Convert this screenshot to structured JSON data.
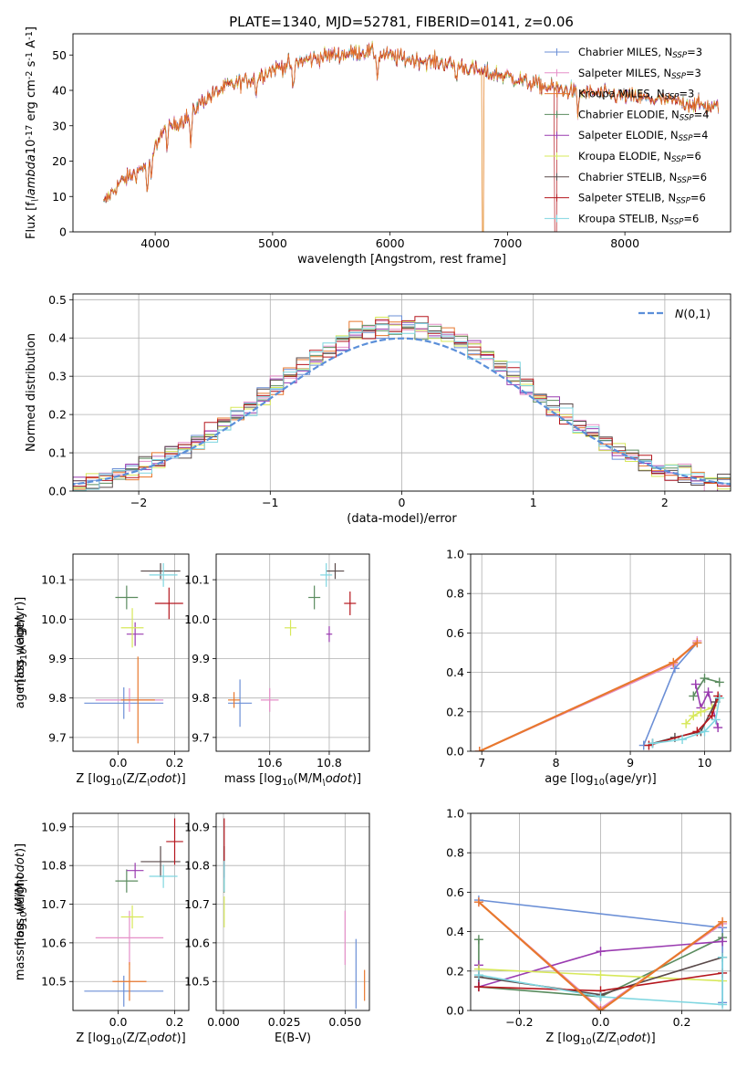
{
  "figure": {
    "title": "PLATE=1340, MJD=52781, FIBERID=0141, z=0.06",
    "colors": [
      "#6b8fd6",
      "#e58fc8",
      "#e8782e",
      "#5b8c5f",
      "#9a3bb0",
      "#d7e85a",
      "#5a4a4a",
      "#b5161d",
      "#7fd6e0"
    ],
    "series_names": [
      "Chabrier MILES, N$_{SSP}$=3",
      "Salpeter MILES, N$_{SSP}$=3",
      "Kroupa MILES, N$_{SSP}$=3",
      "Chabrier ELODIE, N$_{SSP}$=4",
      "Salpeter ELODIE, N$_{SSP}$=4",
      "Kroupa ELODIE, N$_{SSP}$=6",
      "Chabrier STELIB, N$_{SSP}$=6",
      "Salpeter STELIB, N$_{SSP}$=6",
      "Kroupa STELIB, N$_{SSP}$=6"
    ]
  },
  "chart_data": [
    {
      "id": "spectrum",
      "type": "line",
      "xlabel": "wavelength [Angstrom, rest frame]",
      "ylabel": "Flux [f$_\\lambda$10$^{-17}$ erg cm$^{-2}$ s$^{-1}$ A$^{-1}$]",
      "xlim": [
        3300,
        8900
      ],
      "ylim": [
        0,
        56
      ],
      "xticks": [
        4000,
        5000,
        6000,
        7000,
        8000
      ],
      "yticks": [
        0,
        10,
        20,
        30,
        40,
        50
      ],
      "grid": false,
      "legend": "top-right",
      "continuum": [
        [
          3560,
          8
        ],
        [
          3700,
          14
        ],
        [
          3850,
          17
        ],
        [
          3950,
          20
        ],
        [
          4050,
          28
        ],
        [
          4200,
          31
        ],
        [
          4300,
          33
        ],
        [
          4400,
          37
        ],
        [
          4600,
          41
        ],
        [
          4800,
          43
        ],
        [
          5000,
          46
        ],
        [
          5200,
          48
        ],
        [
          5500,
          50
        ],
        [
          5800,
          51
        ],
        [
          6100,
          49
        ],
        [
          6400,
          48
        ],
        [
          6600,
          47
        ],
        [
          6800,
          45
        ],
        [
          7000,
          44
        ],
        [
          7200,
          42
        ],
        [
          7500,
          40
        ],
        [
          7800,
          39
        ],
        [
          8100,
          38
        ],
        [
          8400,
          37
        ],
        [
          8600,
          36
        ],
        [
          8800,
          35
        ]
      ],
      "absorption_features": [
        [
          3933,
          8
        ],
        [
          3968,
          6
        ],
        [
          4102,
          4
        ],
        [
          4304,
          8
        ],
        [
          4861,
          4
        ],
        [
          5175,
          8
        ],
        [
          5893,
          6
        ],
        [
          6563,
          4
        ],
        [
          7600,
          6
        ]
      ],
      "drops": [
        {
          "series": 2,
          "x": 6790
        },
        {
          "series": 5,
          "x": 6790
        },
        {
          "series": 7,
          "x": 7410
        }
      ]
    },
    {
      "id": "residuals",
      "type": "bar",
      "xlabel": "(data-model)/error",
      "ylabel": "Normed distribution",
      "xlim": [
        -2.5,
        2.5
      ],
      "ylim": [
        0,
        0.515
      ],
      "xticks": [
        -2,
        -1,
        0,
        1,
        2
      ],
      "yticks": [
        0.0,
        0.1,
        0.2,
        0.3,
        0.4,
        0.5
      ],
      "bin_width": 0.1,
      "grid": true,
      "legend": "top-right",
      "gaussian_label": "$\\mathcal{N}(0,1)$"
    },
    {
      "id": "age_vs_Z",
      "type": "scatter",
      "xlabel": "Z [log$_{10}$(Z/Z$_\\odot$)]",
      "ylabel": "age  [log$_{10}$(age/yr)]",
      "xlim": [
        -0.16,
        0.25
      ],
      "ylim": [
        9.665,
        10.165
      ],
      "xticks": [
        0.0,
        0.2
      ],
      "yticks": [
        9.7,
        9.8,
        9.9,
        10.0,
        10.1
      ],
      "grid": true,
      "points": [
        {
          "series": 0,
          "x": 0.02,
          "y": 9.787,
          "xerr": 0.14,
          "yerr": 0.04
        },
        {
          "series": 1,
          "x": 0.04,
          "y": 9.795,
          "xerr": 0.12,
          "yerr": 0.03
        },
        {
          "series": 2,
          "x": 0.07,
          "y": 9.795,
          "xerr": 0.06,
          "yerr": 0.11
        },
        {
          "series": 3,
          "x": 0.03,
          "y": 10.055,
          "xerr": 0.04,
          "yerr": 0.03
        },
        {
          "series": 4,
          "x": 0.06,
          "y": 9.962,
          "xerr": 0.03,
          "yerr": 0.03
        },
        {
          "series": 5,
          "x": 0.05,
          "y": 9.978,
          "xerr": 0.04,
          "yerr": 0.05
        },
        {
          "series": 6,
          "x": 0.15,
          "y": 10.122,
          "xerr": 0.07,
          "yerr": 0.02
        },
        {
          "series": 7,
          "x": 0.18,
          "y": 10.04,
          "xerr": 0.05,
          "yerr": 0.04
        },
        {
          "series": 8,
          "x": 0.16,
          "y": 10.112,
          "xerr": 0.05,
          "yerr": 0.03
        }
      ]
    },
    {
      "id": "age_vs_mass",
      "type": "scatter",
      "xlabel": "mass [log$_{10}$(M/M$_\\odot$)]",
      "ylabel": "",
      "xlim": [
        10.42,
        10.935
      ],
      "ylim": [
        9.665,
        10.165
      ],
      "xticks": [
        10.6,
        10.8
      ],
      "yticks": [
        9.7,
        9.8,
        9.9,
        10.0,
        10.1
      ],
      "grid": true,
      "points": [
        {
          "series": 0,
          "x": 10.5,
          "y": 9.787,
          "xerr": 0.04,
          "yerr": 0.06
        },
        {
          "series": 1,
          "x": 10.6,
          "y": 9.795,
          "xerr": 0.03,
          "yerr": 0.03
        },
        {
          "series": 2,
          "x": 10.48,
          "y": 9.795,
          "xerr": 0.02,
          "yerr": 0.02
        },
        {
          "series": 3,
          "x": 10.75,
          "y": 10.055,
          "xerr": 0.02,
          "yerr": 0.03
        },
        {
          "series": 4,
          "x": 10.8,
          "y": 9.962,
          "xerr": 0.01,
          "yerr": 0.02
        },
        {
          "series": 5,
          "x": 10.67,
          "y": 9.978,
          "xerr": 0.02,
          "yerr": 0.02
        },
        {
          "series": 6,
          "x": 10.82,
          "y": 10.122,
          "xerr": 0.03,
          "yerr": 0.02
        },
        {
          "series": 7,
          "x": 10.87,
          "y": 10.04,
          "xerr": 0.02,
          "yerr": 0.03
        },
        {
          "series": 8,
          "x": 10.79,
          "y": 10.112,
          "xerr": 0.02,
          "yerr": 0.03
        }
      ]
    },
    {
      "id": "weight_vs_age",
      "type": "line",
      "xlabel": "age  [log$_{10}$(age/yr)]",
      "ylabel": "mass weight",
      "xlim": [
        6.85,
        10.35
      ],
      "ylim": [
        0,
        1
      ],
      "xticks": [
        7,
        8,
        9,
        10
      ],
      "yticks": [
        0.0,
        0.2,
        0.4,
        0.6,
        0.8,
        1.0
      ],
      "grid": true,
      "series": [
        {
          "series": 0,
          "x": [
            9.18,
            9.6,
            9.9
          ],
          "y": [
            0.03,
            0.42,
            0.55
          ]
        },
        {
          "series": 1,
          "x": [
            6.97,
            9.58,
            9.9
          ],
          "y": [
            0.0,
            0.44,
            0.56
          ]
        },
        {
          "series": 2,
          "x": [
            6.97,
            9.58,
            9.9
          ],
          "y": [
            0.0,
            0.45,
            0.55
          ]
        },
        {
          "series": 3,
          "x": [
            9.85,
            10.0,
            10.2
          ],
          "y": [
            0.28,
            0.37,
            0.35
          ]
        },
        {
          "series": 4,
          "x": [
            9.88,
            9.95,
            10.05,
            10.18
          ],
          "y": [
            0.34,
            0.22,
            0.3,
            0.12
          ]
        },
        {
          "series": 5,
          "x": [
            9.75,
            9.85,
            9.95,
            10.1,
            10.2
          ],
          "y": [
            0.14,
            0.18,
            0.2,
            0.22,
            0.27
          ]
        },
        {
          "series": 6,
          "x": [
            9.3,
            9.6,
            9.95,
            10.15
          ],
          "y": [
            0.04,
            0.07,
            0.1,
            0.25
          ]
        },
        {
          "series": 7,
          "x": [
            9.25,
            9.9,
            10.1,
            10.18
          ],
          "y": [
            0.03,
            0.1,
            0.18,
            0.28
          ]
        },
        {
          "series": 8,
          "x": [
            9.3,
            9.7,
            10.0,
            10.15,
            10.2
          ],
          "y": [
            0.04,
            0.06,
            0.1,
            0.16,
            0.27
          ]
        }
      ]
    },
    {
      "id": "mass_vs_Z",
      "type": "scatter",
      "xlabel": "Z [log$_{10}$(Z/Z$_\\odot$)]",
      "ylabel": "mass [log$_{10}$(M/M$_\\odot$)]",
      "xlim": [
        -0.16,
        0.25
      ],
      "ylim": [
        10.425,
        10.935
      ],
      "xticks": [
        0.0,
        0.2
      ],
      "yticks": [
        10.5,
        10.6,
        10.7,
        10.8,
        10.9
      ],
      "grid": true,
      "points": [
        {
          "series": 0,
          "x": 0.02,
          "y": 10.475,
          "xerr": 0.14,
          "yerr": 0.04
        },
        {
          "series": 1,
          "x": 0.04,
          "y": 10.613,
          "xerr": 0.12,
          "yerr": 0.07
        },
        {
          "series": 2,
          "x": 0.04,
          "y": 10.5,
          "xerr": 0.06,
          "yerr": 0.05
        },
        {
          "series": 3,
          "x": 0.03,
          "y": 10.76,
          "xerr": 0.04,
          "yerr": 0.03
        },
        {
          "series": 4,
          "x": 0.06,
          "y": 10.787,
          "xerr": 0.03,
          "yerr": 0.02
        },
        {
          "series": 5,
          "x": 0.05,
          "y": 10.667,
          "xerr": 0.04,
          "yerr": 0.03
        },
        {
          "series": 6,
          "x": 0.15,
          "y": 10.81,
          "xerr": 0.07,
          "yerr": 0.04
        },
        {
          "series": 7,
          "x": 0.2,
          "y": 10.862,
          "xerr": 0.03,
          "yerr": 0.06
        },
        {
          "series": 8,
          "x": 0.16,
          "y": 10.772,
          "xerr": 0.05,
          "yerr": 0.03
        }
      ]
    },
    {
      "id": "mass_vs_ebv",
      "type": "scatter",
      "xlabel": "E(B-V)",
      "ylabel": "",
      "xlim": [
        -0.003,
        0.06
      ],
      "ylim": [
        10.425,
        10.935
      ],
      "xticks": [
        0.0,
        0.025,
        0.05
      ],
      "yticks": [
        10.5,
        10.6,
        10.7,
        10.8,
        10.9
      ],
      "grid": true,
      "points": [
        {
          "series": 0,
          "x": 0.0545,
          "y": 10.52,
          "xerr": 0.0,
          "yerr": 0.09
        },
        {
          "series": 1,
          "x": 0.05,
          "y": 10.613,
          "xerr": 0.0,
          "yerr": 0.07
        },
        {
          "series": 2,
          "x": 0.058,
          "y": 10.49,
          "xerr": 0.0,
          "yerr": 0.04
        },
        {
          "series": 3,
          "x": 0.0003,
          "y": 10.76,
          "xerr": 0.0,
          "yerr": 0.03
        },
        {
          "series": 4,
          "x": 0.0003,
          "y": 10.787,
          "xerr": 0.0,
          "yerr": 0.02
        },
        {
          "series": 5,
          "x": 0.0003,
          "y": 10.68,
          "xerr": 0.0,
          "yerr": 0.04
        },
        {
          "series": 6,
          "x": 0.0003,
          "y": 10.81,
          "xerr": 0.0,
          "yerr": 0.04
        },
        {
          "series": 7,
          "x": 0.0003,
          "y": 10.862,
          "xerr": 0.0,
          "yerr": 0.06
        },
        {
          "series": 8,
          "x": 0.0003,
          "y": 10.772,
          "xerr": 0.0,
          "yerr": 0.04
        }
      ]
    },
    {
      "id": "weight_vs_Z",
      "type": "line",
      "xlabel": "Z [log$_{10}$(Z/Z$_\\odot$)]",
      "ylabel": "mass weight",
      "xlim": [
        -0.32,
        0.32
      ],
      "ylim": [
        0,
        1
      ],
      "xticks": [
        -0.2,
        0.0,
        0.2
      ],
      "yticks": [
        0.0,
        0.2,
        0.4,
        0.6,
        0.8,
        1.0
      ],
      "grid": true,
      "series": [
        {
          "series": 0,
          "x": [
            -0.3,
            0.3,
            0.3
          ],
          "y": [
            0.56,
            0.42,
            0.04
          ]
        },
        {
          "series": 1,
          "x": [
            -0.3,
            0.0,
            0.3
          ],
          "y": [
            0.55,
            0.01,
            0.44
          ]
        },
        {
          "series": 2,
          "x": [
            -0.3,
            0.0,
            0.3
          ],
          "y": [
            0.55,
            0.0,
            0.45
          ]
        },
        {
          "series": 3,
          "x": [
            -0.3,
            -0.3,
            0.0,
            0.3
          ],
          "y": [
            0.36,
            0.12,
            0.07,
            0.37
          ]
        },
        {
          "series": 4,
          "x": [
            -0.3,
            -0.3,
            0.0,
            0.3
          ],
          "y": [
            0.23,
            0.12,
            0.3,
            0.35
          ]
        },
        {
          "series": 5,
          "x": [
            -0.3,
            0.0,
            0.3
          ],
          "y": [
            0.21,
            0.18,
            0.15
          ]
        },
        {
          "series": 6,
          "x": [
            -0.3,
            0.0,
            0.3
          ],
          "y": [
            0.17,
            0.08,
            0.27
          ]
        },
        {
          "series": 7,
          "x": [
            -0.3,
            0.0,
            0.3
          ],
          "y": [
            0.12,
            0.1,
            0.19
          ]
        },
        {
          "series": 8,
          "x": [
            -0.3,
            0.0,
            0.3,
            0.3
          ],
          "y": [
            0.18,
            0.07,
            0.03,
            0.27
          ]
        }
      ]
    }
  ]
}
